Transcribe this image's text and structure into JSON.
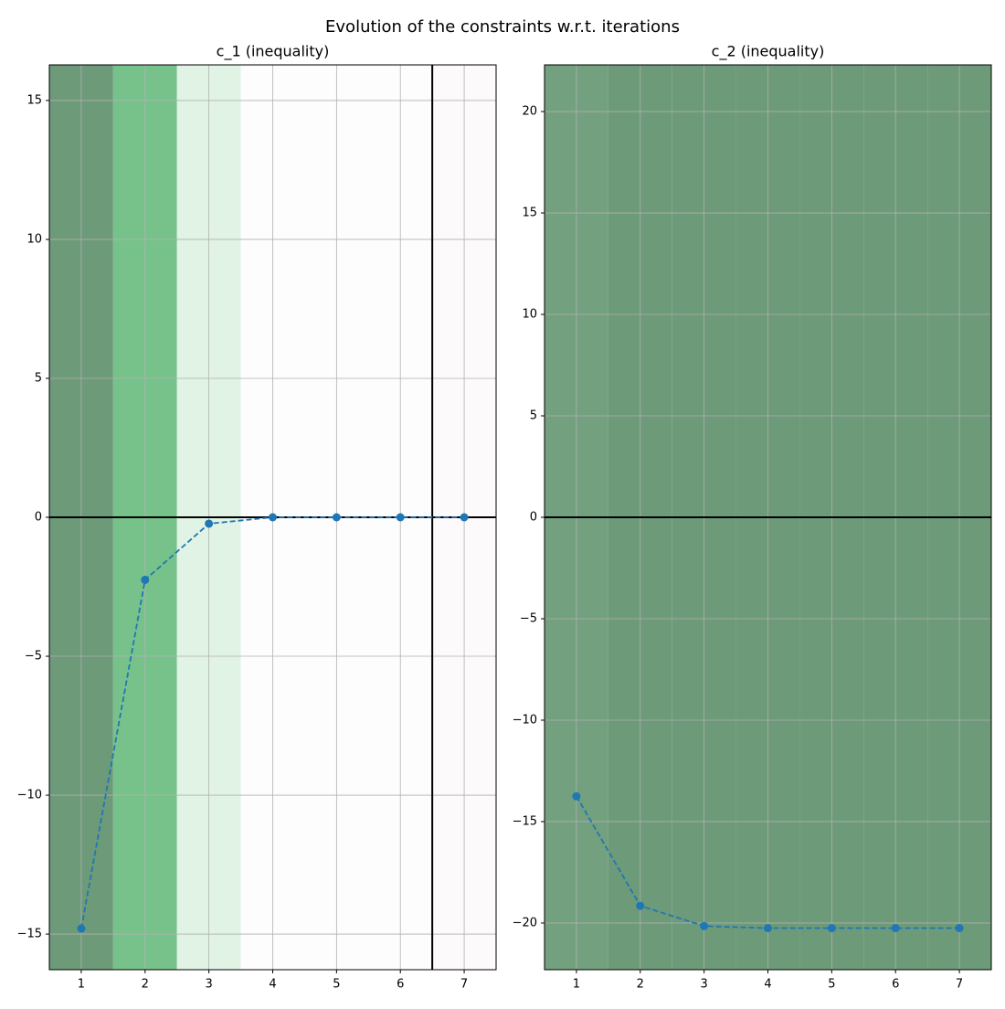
{
  "title": "Evolution of the constraints w.r.t. iterations",
  "chart_data": [
    {
      "type": "line",
      "title": "c_1 (inequality)",
      "x": [
        1,
        2,
        3,
        4,
        5,
        6,
        7
      ],
      "values": [
        -14.8,
        -2.25,
        -0.23,
        0,
        0,
        0,
        0
      ],
      "color": "#1f77b4",
      "band_colors": [
        "#6d9a79",
        "#77c28b",
        "#e0f3e4",
        "#fefdfe",
        "#fefdfe",
        "#fefdfe",
        "#fdfafc"
      ],
      "xlim": [
        0.5,
        7.5
      ],
      "xticks": [
        1,
        2,
        3,
        4,
        5,
        6,
        7
      ],
      "ylim": [
        -16.28,
        16.28
      ],
      "yticks": [
        {
          "value": -15,
          "label": "−15"
        },
        {
          "value": -10,
          "label": "−10"
        },
        {
          "value": -5,
          "label": "−5"
        },
        0,
        5,
        10,
        15
      ],
      "hline": 0,
      "vline": 6.5,
      "grid": true
    },
    {
      "type": "line",
      "title": "c_2 (inequality)",
      "x": [
        1,
        2,
        3,
        4,
        5,
        6,
        7
      ],
      "values": [
        -13.75,
        -19.15,
        -20.15,
        -20.25,
        -20.25,
        -20.25,
        -20.25
      ],
      "color": "#1f77b4",
      "band_colors": [
        "#73a07f",
        "#6d9a79",
        "#6d9a79",
        "#6d9a79",
        "#6d9a79",
        "#6d9a79",
        "#6d9a79"
      ],
      "xlim": [
        0.5,
        7.5
      ],
      "xticks": [
        1,
        2,
        3,
        4,
        5,
        6,
        7
      ],
      "ylim": [
        -22.3,
        22.3
      ],
      "yticks": [
        {
          "value": -20,
          "label": "−20"
        },
        {
          "value": -15,
          "label": "−15"
        },
        {
          "value": -10,
          "label": "−10"
        },
        {
          "value": -5,
          "label": "−5"
        },
        0,
        5,
        10,
        15,
        20
      ],
      "hline": 0,
      "grid": true
    }
  ]
}
